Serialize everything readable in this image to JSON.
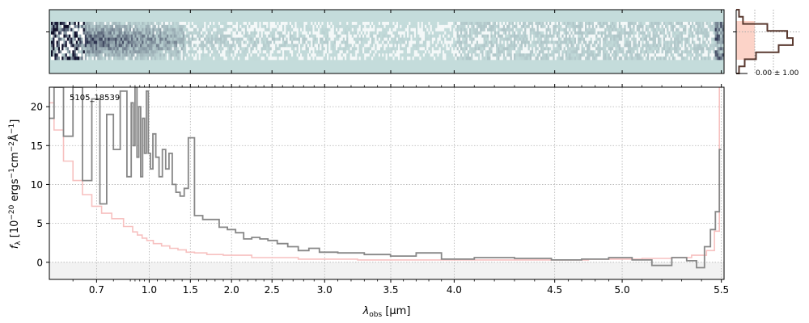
{
  "chart_data": {
    "type": "line",
    "object_label": "5105_18539",
    "xlabel": {
      "main": "λ",
      "sub": "obs",
      "unit": " [μm]"
    },
    "ylabel": {
      "main": "f",
      "sub": "λ",
      "unit": "[10",
      "exp1": "−20",
      "mid1": " ergs",
      "exp2": "−1",
      "mid2": "cm",
      "exp3": "−2",
      "mid3": "Å",
      "exp4": "−1",
      "end": "]"
    },
    "x_scale": "nonlinear (resolution-weighted)",
    "x_knots": [
      [
        0.6,
        0.0
      ],
      [
        0.7,
        0.07
      ],
      [
        0.8,
        0.12
      ],
      [
        1.0,
        0.148
      ],
      [
        1.5,
        0.209
      ],
      [
        2.0,
        0.27
      ],
      [
        2.5,
        0.33
      ],
      [
        3.0,
        0.408
      ],
      [
        3.5,
        0.506
      ],
      [
        4.0,
        0.6
      ],
      [
        4.5,
        0.749
      ],
      [
        5.0,
        0.849
      ],
      [
        5.5,
        0.996
      ]
    ],
    "xlim": [
      0.6,
      5.5
    ],
    "ylim": [
      -2.2,
      22.5
    ],
    "xticks": [
      "0.7",
      "1.0",
      "1.5",
      "2.0",
      "2.5",
      "3.0",
      "3.5",
      "4.0",
      "4.5",
      "5.0",
      "5.5"
    ],
    "xtick_values": [
      0.7,
      1.0,
      1.5,
      2.0,
      2.5,
      3.0,
      3.5,
      4.0,
      4.5,
      5.0,
      5.5
    ],
    "yticks": [
      "0",
      "5",
      "10",
      "15",
      "20"
    ],
    "ytick_values": [
      0,
      5,
      10,
      15,
      20
    ],
    "grid": true,
    "series": [
      {
        "role": "flux",
        "style": "steps",
        "color": "#878787",
        "x": [
          0.6,
          0.62,
          0.64,
          0.66,
          0.68,
          0.7,
          0.72,
          0.74,
          0.76,
          0.78,
          0.8,
          0.82,
          0.84,
          0.86,
          0.88,
          0.9,
          0.92,
          0.94,
          0.96,
          0.98,
          1.0,
          1.03,
          1.06,
          1.1,
          1.14,
          1.18,
          1.22,
          1.26,
          1.3,
          1.35,
          1.4,
          1.45,
          1.5,
          1.6,
          1.7,
          1.8,
          1.9,
          2.0,
          2.1,
          2.2,
          2.3,
          2.4,
          2.5,
          2.6,
          2.7,
          2.8,
          2.9,
          3.0,
          3.2,
          3.4,
          3.6,
          3.8,
          4.0,
          4.2,
          4.4,
          4.6,
          4.8,
          5.0,
          5.1,
          5.2,
          5.3,
          5.35,
          5.4,
          5.43,
          5.46,
          5.48,
          5.5
        ],
        "y": [
          18.5,
          22.5,
          16.2,
          22.5,
          10.5,
          21.0,
          7.5,
          19.0,
          14.5,
          22.0,
          11.0,
          20.5,
          15.0,
          22.5,
          13.5,
          20.0,
          11.0,
          18.5,
          14.0,
          22.0,
          14.0,
          12.0,
          16.5,
          13.5,
          11.0,
          14.5,
          12.0,
          14.0,
          10.0,
          9.0,
          8.5,
          9.5,
          16.0,
          6.0,
          5.5,
          5.5,
          4.5,
          4.2,
          3.8,
          3.0,
          3.2,
          3.0,
          2.8,
          2.4,
          2.0,
          1.5,
          1.8,
          1.3,
          1.2,
          1.0,
          0.8,
          1.2,
          0.4,
          0.6,
          0.5,
          0.3,
          0.4,
          0.6,
          0.3,
          -0.4,
          0.6,
          0.2,
          -0.7,
          2.0,
          4.2,
          6.5,
          14.5
        ]
      },
      {
        "role": "error",
        "style": "steps",
        "color": "#f7c1c0",
        "x": [
          0.6,
          0.62,
          0.64,
          0.66,
          0.68,
          0.7,
          0.73,
          0.76,
          0.8,
          0.85,
          0.9,
          0.95,
          1.0,
          1.1,
          1.2,
          1.3,
          1.4,
          1.5,
          1.6,
          1.8,
          2.0,
          2.5,
          3.0,
          3.5,
          4.0,
          4.5,
          5.0,
          5.2,
          5.3,
          5.4,
          5.45,
          5.48,
          5.5
        ],
        "y": [
          20.5,
          17.0,
          13.0,
          10.5,
          8.7,
          7.2,
          6.3,
          5.6,
          4.6,
          3.9,
          3.5,
          3.1,
          2.8,
          2.4,
          2.1,
          1.8,
          1.6,
          1.3,
          1.2,
          1.0,
          0.9,
          0.6,
          0.4,
          0.3,
          0.3,
          0.3,
          0.4,
          0.5,
          0.6,
          0.9,
          1.5,
          4.0,
          22.5
        ]
      }
    ],
    "hist_panel": {
      "label": "0.00 ± 1.00",
      "bins": [
        -3.0,
        -2.0,
        -1.0,
        -0.5,
        0.0,
        0.5,
        1.0,
        2.0,
        3.0
      ],
      "counts": [
        0.05,
        0.12,
        0.55,
        0.9,
        1.0,
        0.75,
        0.35,
        0.15,
        0.05
      ]
    },
    "colors": {
      "flux": "#878787",
      "error": "#f7c1c0",
      "hist_line": "#5a3a30",
      "hist_fill": "#fcd3c8",
      "spec2d_bg": "#c4dcdb",
      "spec2d_dark": "#1a1a3a",
      "zero_band": "#f2f2f2"
    }
  }
}
